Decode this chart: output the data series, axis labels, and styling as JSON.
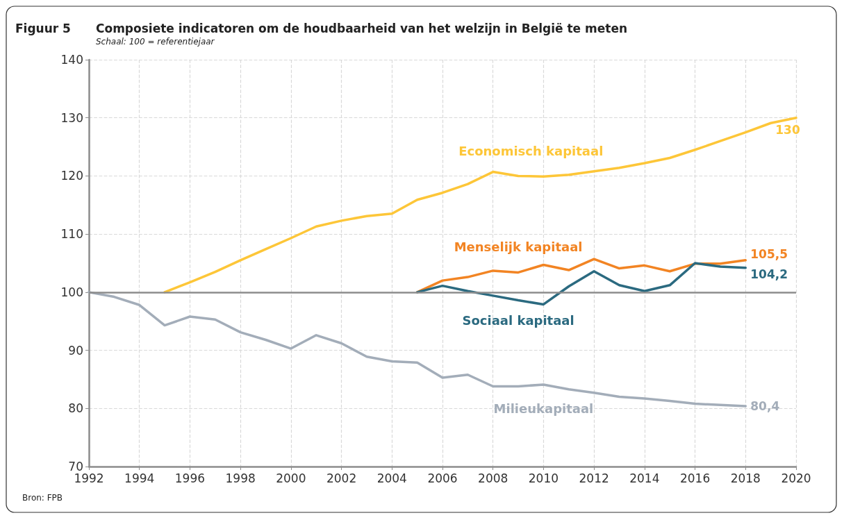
{
  "chart_data": {
    "type": "line",
    "title": "Composiete indicatoren om de houdbaarheid van het welzijn in België te meten",
    "subtitle": "Schaal: 100 = referentiejaar",
    "annotations": [
      "Figuur 5",
      "Bron: FPB"
    ],
    "series": [
      {
        "name": "Economisch kapitaal",
        "color": "#fdc638",
        "x": [
          1995,
          1996,
          1997,
          1998,
          1999,
          2000,
          2001,
          2002,
          2003,
          2004,
          2005,
          2006,
          2007,
          2008,
          2009,
          2010,
          2011,
          2012,
          2013,
          2014,
          2015,
          2016,
          2017,
          2018,
          2019,
          2020
        ],
        "values": [
          100,
          101.7,
          103.5,
          105.5,
          107.4,
          109.3,
          111.3,
          112.3,
          113.1,
          113.5,
          115.9,
          117.1,
          118.6,
          120.7,
          120.0,
          119.9,
          120.2,
          120.8,
          121.4,
          122.2,
          123.1,
          124.5,
          126.0,
          127.5,
          129.1,
          130
        ],
        "value_labels": [
          null,
          null,
          null,
          null,
          null,
          null,
          null,
          null,
          null,
          null,
          null,
          null,
          null,
          null,
          null,
          null,
          null,
          null,
          null,
          null,
          null,
          null,
          null,
          null,
          null,
          "130"
        ]
      },
      {
        "name": "Menselijk kapitaal",
        "color": "#f28423",
        "x": [
          2005,
          2006,
          2007,
          2008,
          2009,
          2010,
          2011,
          2012,
          2013,
          2014,
          2015,
          2016,
          2017,
          2018
        ],
        "values": [
          100,
          102.0,
          102.6,
          103.7,
          103.4,
          104.7,
          103.8,
          105.7,
          104.1,
          104.6,
          103.6,
          104.9,
          104.9,
          105.5
        ],
        "value_labels": [
          null,
          null,
          null,
          null,
          null,
          null,
          null,
          null,
          null,
          null,
          null,
          null,
          null,
          "105,5"
        ]
      },
      {
        "name": "Sociaal kapitaal",
        "color": "#2b6a80",
        "x": [
          2005,
          2006,
          2007,
          2008,
          2009,
          2010,
          2011,
          2012,
          2013,
          2014,
          2015,
          2016,
          2017,
          2018
        ],
        "values": [
          100,
          101.1,
          100.2,
          99.4,
          98.6,
          97.9,
          101.0,
          103.6,
          101.2,
          100.2,
          101.2,
          105.0,
          104.4,
          104.2
        ],
        "value_labels": [
          null,
          null,
          null,
          null,
          null,
          null,
          null,
          null,
          null,
          null,
          null,
          null,
          null,
          "104,2"
        ]
      },
      {
        "name": "Milieukapitaal",
        "color": "#a3adb9",
        "x": [
          1992,
          1993,
          1994,
          1995,
          1996,
          1997,
          1998,
          1999,
          2000,
          2001,
          2002,
          2003,
          2004,
          2005,
          2006,
          2007,
          2008,
          2009,
          2010,
          2011,
          2012,
          2013,
          2014,
          2015,
          2016,
          2017,
          2018
        ],
        "values": [
          100,
          99.2,
          97.8,
          94.3,
          95.8,
          95.3,
          93.1,
          91.8,
          90.3,
          92.6,
          91.2,
          88.9,
          88.1,
          87.9,
          85.3,
          85.8,
          83.8,
          83.8,
          84.1,
          83.3,
          82.7,
          82.0,
          81.7,
          81.3,
          80.8,
          80.6,
          80.4
        ],
        "value_labels": [
          null,
          null,
          null,
          null,
          null,
          null,
          null,
          null,
          null,
          null,
          null,
          null,
          null,
          null,
          null,
          null,
          null,
          null,
          null,
          null,
          null,
          null,
          null,
          null,
          null,
          null,
          "80,4"
        ]
      }
    ],
    "xlim": [
      1992,
      2020
    ],
    "xticks": [
      1992,
      1994,
      1996,
      1998,
      2000,
      2002,
      2004,
      2006,
      2008,
      2010,
      2012,
      2014,
      2016,
      2018,
      2020
    ],
    "ylim": [
      70,
      140
    ],
    "yticks": [
      70,
      80,
      90,
      100,
      110,
      120,
      130,
      140
    ],
    "ref_lines": [
      {
        "axis": "y",
        "value": 100,
        "color": "#8c8c8c"
      }
    ],
    "grid": true,
    "legend": false,
    "marker": "none",
    "line_style": "solid"
  }
}
